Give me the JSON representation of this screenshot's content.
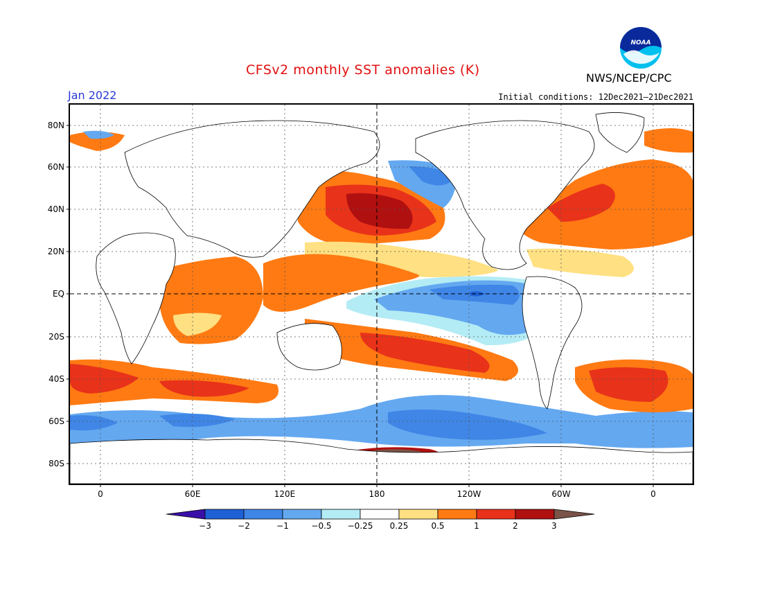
{
  "header": {
    "title": "CFSv2 monthly SST anomalies (K)",
    "agency": "NWS/NCEP/CPC",
    "month": "Jan 2022",
    "initial_conditions": "Initial conditions: 12Dec2021–21Dec2021",
    "logo_text": "NOAA"
  },
  "map": {
    "lat_labels": [
      "80N",
      "60N",
      "40N",
      "20N",
      "EQ",
      "20S",
      "40S",
      "60S",
      "80S"
    ],
    "lon_labels": [
      "0",
      "60E",
      "120E",
      "180",
      "120W",
      "60W",
      "0"
    ]
  },
  "colorbar": {
    "tick_labels": [
      "−3",
      "−2",
      "−1",
      "−0.5",
      "−0.25",
      "0.25",
      "0.5",
      "1",
      "2",
      "3"
    ],
    "colors": {
      "below_min": "#3a0fa8",
      "bin_-3_-2": "#1e60d6",
      "bin_-2_-1": "#3f86e6",
      "bin_-1_-0.5": "#64a8f0",
      "bin_-0.5_-0.25": "#b4ecf5",
      "bin_-0.25_0.25": "#ffffff",
      "bin_0.25_0.5": "#ffe082",
      "bin_0.5_1": "#ff7a12",
      "bin_1_2": "#e8321a",
      "bin_2_3": "#b01010",
      "above_max": "#7a5448"
    }
  }
}
